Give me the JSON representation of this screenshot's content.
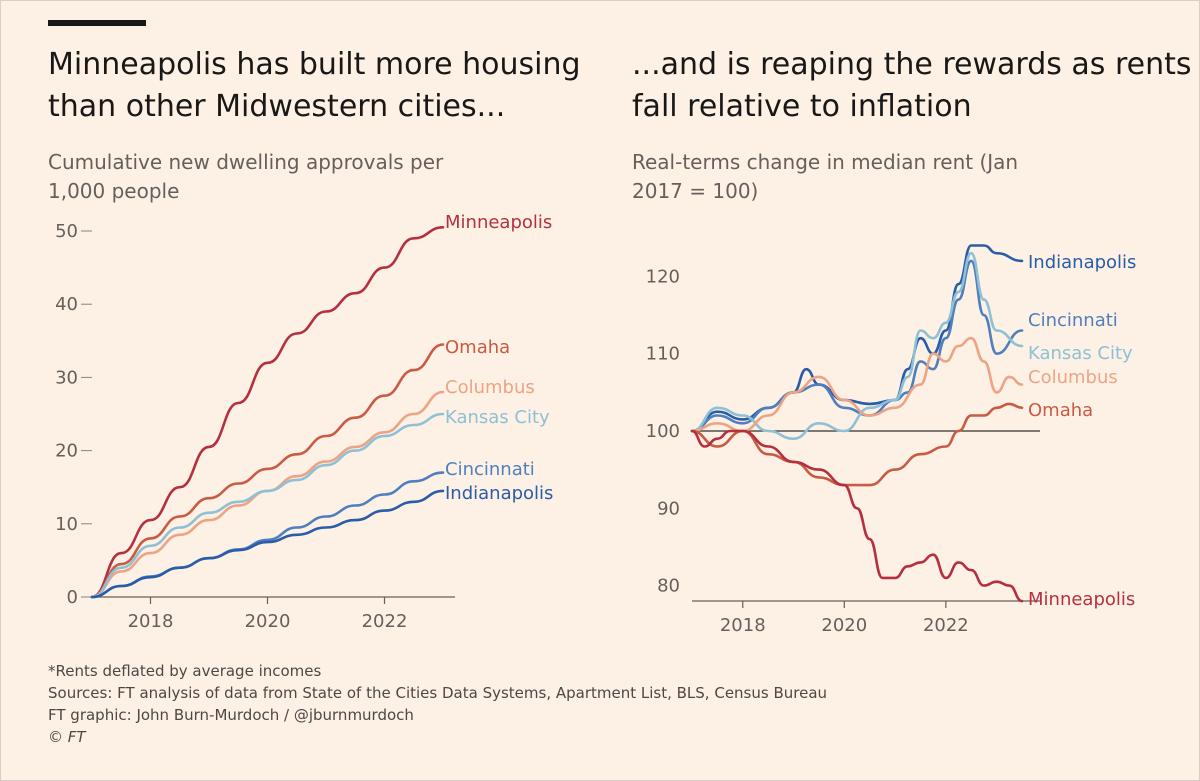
{
  "left_title": "Minneapolis has built more housing than other Midwestern cities...",
  "left_subtitle": "Cumulative new dwelling approvals per 1,000 people",
  "right_title": "...and is reaping the rewards as rents fall relative to inflation",
  "right_subtitle": "Real-terms change in median rent (Jan 2017 = 100)",
  "footer": {
    "note": "*Rents deflated by average incomes",
    "sources": "Sources: FT analysis of data from State of the Cities Data Systems, Apartment List, BLS, Census Bureau",
    "credit": "FT graphic: John Burn-Murdoch / @jburnmurdoch",
    "copyright": "© FT"
  },
  "chart_data": [
    {
      "type": "line",
      "title": "Minneapolis has built more housing than other Midwestern cities...",
      "subtitle": "Cumulative new dwelling approvals per 1,000 people",
      "xlim": [
        2017,
        2023.3
      ],
      "ylim": [
        0,
        50
      ],
      "xticks": [
        "2018",
        "2020",
        "2022"
      ],
      "yticks": [
        "0",
        "10",
        "20",
        "30",
        "40",
        "50"
      ],
      "grid": false,
      "legend": "direct labels at line ends",
      "series": [
        {
          "name": "Minneapolis",
          "color": "#b5303f",
          "x": [
            2017,
            2017.5,
            2018,
            2018.5,
            2019,
            2019.5,
            2020,
            2020.5,
            2021,
            2021.5,
            2022,
            2022.5,
            2023
          ],
          "y": [
            0,
            6,
            10.5,
            15,
            20.5,
            26.5,
            32,
            36,
            39,
            41.5,
            45,
            49,
            50.5
          ]
        },
        {
          "name": "Omaha",
          "color": "#c95a43",
          "x": [
            2017,
            2017.5,
            2018,
            2018.5,
            2019,
            2019.5,
            2020,
            2020.5,
            2021,
            2021.5,
            2022,
            2022.5,
            2023
          ],
          "y": [
            0,
            4.5,
            8,
            11,
            13.5,
            15.5,
            17.5,
            19.5,
            22,
            24.5,
            27.5,
            31,
            34.5
          ]
        },
        {
          "name": "Columbus",
          "color": "#eca484",
          "x": [
            2017,
            2017.5,
            2018,
            2018.5,
            2019,
            2019.5,
            2020,
            2020.5,
            2021,
            2021.5,
            2022,
            2022.5,
            2023
          ],
          "y": [
            0,
            3.5,
            6,
            8.5,
            10.5,
            12.5,
            14.5,
            16.5,
            18.5,
            20.5,
            22.5,
            25,
            28
          ]
        },
        {
          "name": "Kansas City",
          "color": "#8ec0d6",
          "x": [
            2017,
            2017.5,
            2018,
            2018.5,
            2019,
            2019.5,
            2020,
            2020.5,
            2021,
            2021.5,
            2022,
            2022.5,
            2023
          ],
          "y": [
            0,
            4,
            7,
            9.5,
            11.5,
            13,
            14.5,
            16,
            18,
            20,
            22,
            23.5,
            25
          ]
        },
        {
          "name": "Cincinnati",
          "color": "#4f7fbf",
          "x": [
            2017,
            2017.5,
            2018,
            2018.5,
            2019,
            2019.5,
            2020,
            2020.5,
            2021,
            2021.5,
            2022,
            2022.5,
            2023
          ],
          "y": [
            0,
            1.5,
            2.8,
            4,
            5.3,
            6.5,
            7.8,
            9.5,
            11,
            12.5,
            14,
            15.8,
            17
          ]
        },
        {
          "name": "Indianapolis",
          "color": "#2a5da8",
          "x": [
            2017,
            2017.5,
            2018,
            2018.5,
            2019,
            2019.5,
            2020,
            2020.5,
            2021,
            2021.5,
            2022,
            2022.5,
            2023
          ],
          "y": [
            0,
            1.5,
            2.7,
            4,
            5.3,
            6.4,
            7.5,
            8.5,
            9.5,
            10.5,
            11.8,
            13,
            14.5
          ]
        }
      ]
    },
    {
      "type": "line",
      "title": "...and is reaping the rewards as rents fall relative to inflation",
      "subtitle": "Real-terms change in median rent (Jan 2017 = 100)",
      "xlim": [
        2016.6,
        2023.4
      ],
      "ylim": [
        77,
        125
      ],
      "xticks": [
        "2018",
        "2020",
        "2022"
      ],
      "yticks": [
        "80",
        "90",
        "100",
        "110",
        "120"
      ],
      "reference_line": 100,
      "grid": false,
      "legend": "direct labels at line ends",
      "series": [
        {
          "name": "Indianapolis",
          "color": "#2a5da8",
          "x": [
            2017,
            2017.5,
            2018,
            2018.5,
            2019,
            2019.25,
            2019.5,
            2020,
            2020.5,
            2021,
            2021.25,
            2021.5,
            2021.75,
            2022,
            2022.25,
            2022.5,
            2022.75,
            2023,
            2023.5
          ],
          "y": [
            100,
            102.5,
            101.5,
            103,
            105,
            108,
            106,
            104,
            103.5,
            104,
            108,
            112,
            110,
            113,
            119,
            124,
            124,
            123,
            122
          ]
        },
        {
          "name": "Cincinnati",
          "color": "#4f7fbf",
          "x": [
            2017,
            2017.5,
            2018,
            2018.5,
            2019,
            2019.5,
            2020,
            2020.5,
            2021,
            2021.25,
            2021.5,
            2021.75,
            2022,
            2022.25,
            2022.5,
            2022.75,
            2023,
            2023.5
          ],
          "y": [
            100,
            102,
            101,
            103,
            105,
            106,
            103,
            102,
            104,
            105,
            109,
            108,
            112,
            117,
            122,
            115,
            110,
            113
          ]
        },
        {
          "name": "Kansas City",
          "color": "#8ec0d6",
          "x": [
            2017,
            2017.5,
            2018,
            2018.5,
            2019,
            2019.5,
            2020,
            2020.5,
            2021,
            2021.25,
            2021.5,
            2021.75,
            2022,
            2022.25,
            2022.5,
            2022.75,
            2023,
            2023.5
          ],
          "y": [
            100,
            103,
            102,
            100,
            99,
            101,
            100,
            103,
            104,
            107,
            113,
            112,
            114,
            118,
            123,
            117,
            113,
            111
          ]
        },
        {
          "name": "Columbus",
          "color": "#eca484",
          "x": [
            2017,
            2017.5,
            2018,
            2018.5,
            2019,
            2019.5,
            2020,
            2020.5,
            2021,
            2021.5,
            2021.75,
            2022,
            2022.25,
            2022.5,
            2022.75,
            2023,
            2023.25,
            2023.5
          ],
          "y": [
            100,
            101,
            100,
            102,
            105,
            107,
            104,
            102,
            103,
            106,
            110,
            109,
            111,
            112,
            109,
            105,
            107,
            106
          ]
        },
        {
          "name": "Omaha",
          "color": "#c95a43",
          "x": [
            2017,
            2017.5,
            2018,
            2018.5,
            2019,
            2019.5,
            2020,
            2020.5,
            2021,
            2021.5,
            2022,
            2022.25,
            2022.5,
            2022.75,
            2023,
            2023.25,
            2023.5
          ],
          "y": [
            100,
            98,
            100,
            97,
            96,
            94,
            93,
            93,
            95,
            97,
            98,
            100,
            102,
            102,
            103,
            103.5,
            103
          ]
        },
        {
          "name": "Minneapolis",
          "color": "#b5303f",
          "x": [
            2017,
            2017.25,
            2017.5,
            2017.75,
            2018,
            2018.5,
            2019,
            2019.5,
            2020,
            2020.25,
            2020.5,
            2020.75,
            2021,
            2021.25,
            2021.5,
            2021.75,
            2022,
            2022.25,
            2022.5,
            2022.75,
            2023,
            2023.25,
            2023.5
          ],
          "y": [
            100,
            98,
            99,
            100,
            100,
            98,
            96,
            95,
            93,
            90,
            86,
            81,
            81,
            82.5,
            83,
            84,
            81,
            83,
            82,
            80,
            80.5,
            80,
            78
          ]
        }
      ]
    }
  ]
}
